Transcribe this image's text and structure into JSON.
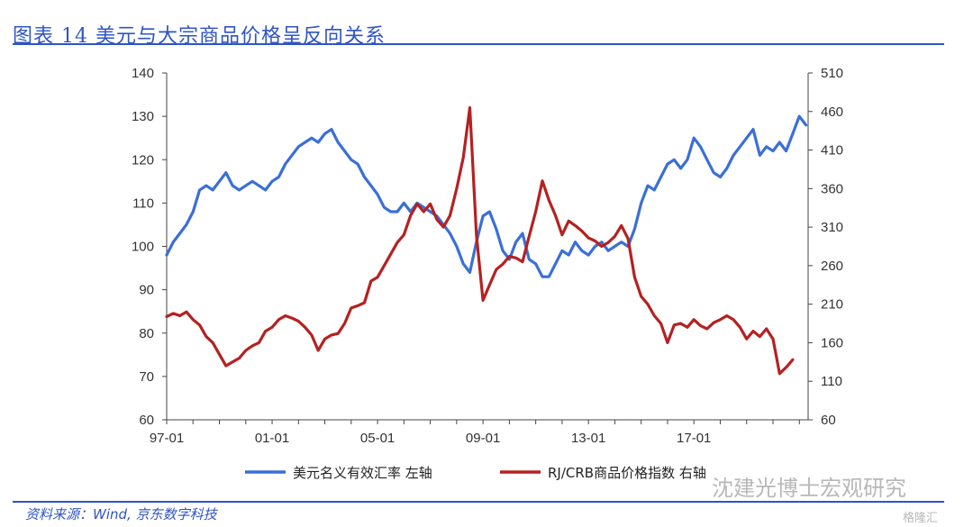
{
  "figure": {
    "title": "图表 14 美元与大宗商品价格呈反向关系",
    "source": "资料来源：Wind, 京东数字科技",
    "watermark": "沈建光博士宏观研究",
    "brand": "格隆汇"
  },
  "colors": {
    "usd": "#3a6fd8",
    "crb": "#b52121",
    "title": "#2f54c6"
  },
  "chart_data": {
    "type": "line",
    "title": "",
    "x_ticks": [
      "97-01",
      "01-01",
      "05-01",
      "09-01",
      "13-01",
      "17-01"
    ],
    "y_left": {
      "lim": [
        60,
        140
      ],
      "ticks": [
        60,
        70,
        80,
        90,
        100,
        110,
        120,
        130,
        140
      ]
    },
    "y_right": {
      "lim": [
        60,
        510
      ],
      "ticks": [
        60,
        110,
        160,
        210,
        260,
        310,
        360,
        410,
        460,
        510
      ]
    },
    "grid": false,
    "legend": "bottom",
    "series": [
      {
        "name": "美元名义有效汇率 左轴",
        "axis": "left",
        "points": [
          [
            "1997-01",
            98
          ],
          [
            "1997-04",
            101
          ],
          [
            "1997-07",
            103
          ],
          [
            "1997-10",
            105
          ],
          [
            "1998-01",
            108
          ],
          [
            "1998-04",
            113
          ],
          [
            "1998-07",
            114
          ],
          [
            "1998-10",
            113
          ],
          [
            "1999-01",
            115
          ],
          [
            "1999-04",
            117
          ],
          [
            "1999-07",
            114
          ],
          [
            "1999-10",
            113
          ],
          [
            "2000-01",
            114
          ],
          [
            "2000-04",
            115
          ],
          [
            "2000-07",
            114
          ],
          [
            "2000-10",
            113
          ],
          [
            "2001-01",
            115
          ],
          [
            "2001-04",
            116
          ],
          [
            "2001-07",
            119
          ],
          [
            "2001-10",
            121
          ],
          [
            "2002-01",
            123
          ],
          [
            "2002-04",
            124
          ],
          [
            "2002-07",
            125
          ],
          [
            "2002-10",
            124
          ],
          [
            "2003-01",
            126
          ],
          [
            "2003-04",
            127
          ],
          [
            "2003-07",
            124
          ],
          [
            "2003-10",
            122
          ],
          [
            "2004-01",
            120
          ],
          [
            "2004-04",
            119
          ],
          [
            "2004-07",
            116
          ],
          [
            "2004-10",
            114
          ],
          [
            "2005-01",
            112
          ],
          [
            "2005-04",
            109
          ],
          [
            "2005-07",
            108
          ],
          [
            "2005-10",
            108
          ],
          [
            "2006-01",
            110
          ],
          [
            "2006-04",
            108
          ],
          [
            "2006-07",
            110
          ],
          [
            "2006-10",
            109
          ],
          [
            "2007-01",
            108
          ],
          [
            "2007-04",
            107
          ],
          [
            "2007-07",
            105
          ],
          [
            "2007-10",
            103
          ],
          [
            "2008-01",
            100
          ],
          [
            "2008-04",
            96
          ],
          [
            "2008-07",
            94
          ],
          [
            "2008-10",
            101
          ],
          [
            "2009-01",
            107
          ],
          [
            "2009-04",
            108
          ],
          [
            "2009-07",
            104
          ],
          [
            "2009-10",
            99
          ],
          [
            "2010-01",
            97
          ],
          [
            "2010-04",
            101
          ],
          [
            "2010-07",
            103
          ],
          [
            "2010-10",
            97
          ],
          [
            "2011-01",
            96
          ],
          [
            "2011-04",
            93
          ],
          [
            "2011-07",
            93
          ],
          [
            "2011-10",
            96
          ],
          [
            "2012-01",
            99
          ],
          [
            "2012-04",
            98
          ],
          [
            "2012-07",
            101
          ],
          [
            "2012-10",
            99
          ],
          [
            "2013-01",
            98
          ],
          [
            "2013-04",
            100
          ],
          [
            "2013-07",
            101
          ],
          [
            "2013-10",
            99
          ],
          [
            "2014-01",
            100
          ],
          [
            "2014-04",
            101
          ],
          [
            "2014-07",
            100
          ],
          [
            "2014-10",
            104
          ],
          [
            "2015-01",
            110
          ],
          [
            "2015-04",
            114
          ],
          [
            "2015-07",
            113
          ],
          [
            "2015-10",
            116
          ],
          [
            "2016-01",
            119
          ],
          [
            "2016-04",
            120
          ],
          [
            "2016-07",
            118
          ],
          [
            "2016-10",
            120
          ],
          [
            "2017-01",
            125
          ],
          [
            "2017-04",
            123
          ],
          [
            "2017-07",
            120
          ],
          [
            "2017-10",
            117
          ],
          [
            "2018-01",
            116
          ],
          [
            "2018-04",
            118
          ],
          [
            "2018-07",
            121
          ],
          [
            "2018-10",
            123
          ],
          [
            "2019-01",
            125
          ],
          [
            "2019-04",
            127
          ],
          [
            "2019-07",
            121
          ],
          [
            "2019-10",
            123
          ],
          [
            "2020-01",
            122
          ],
          [
            "2020-04",
            124
          ],
          [
            "2020-07",
            122
          ],
          [
            "2020-10",
            126
          ],
          [
            "2021-01",
            130
          ],
          [
            "2021-04",
            128
          ]
        ]
      },
      {
        "name": "RJ/CRB商品价格指数 右轴",
        "axis": "right",
        "points": [
          [
            "1997-01",
            194
          ],
          [
            "1997-04",
            198
          ],
          [
            "1997-07",
            195
          ],
          [
            "1997-10",
            200
          ],
          [
            "1998-01",
            190
          ],
          [
            "1998-04",
            183
          ],
          [
            "1998-07",
            168
          ],
          [
            "1998-10",
            160
          ],
          [
            "1999-01",
            145
          ],
          [
            "1999-04",
            130
          ],
          [
            "1999-07",
            135
          ],
          [
            "1999-10",
            140
          ],
          [
            "2000-01",
            150
          ],
          [
            "2000-04",
            156
          ],
          [
            "2000-07",
            160
          ],
          [
            "2000-10",
            175
          ],
          [
            "2001-01",
            180
          ],
          [
            "2001-04",
            190
          ],
          [
            "2001-07",
            195
          ],
          [
            "2001-10",
            192
          ],
          [
            "2002-01",
            188
          ],
          [
            "2002-04",
            180
          ],
          [
            "2002-07",
            170
          ],
          [
            "2002-10",
            150
          ],
          [
            "2003-01",
            165
          ],
          [
            "2003-04",
            170
          ],
          [
            "2003-07",
            172
          ],
          [
            "2003-10",
            185
          ],
          [
            "2004-01",
            205
          ],
          [
            "2004-04",
            208
          ],
          [
            "2004-07",
            212
          ],
          [
            "2004-10",
            240
          ],
          [
            "2005-01",
            245
          ],
          [
            "2005-04",
            260
          ],
          [
            "2005-07",
            275
          ],
          [
            "2005-10",
            290
          ],
          [
            "2006-01",
            300
          ],
          [
            "2006-04",
            325
          ],
          [
            "2006-07",
            340
          ],
          [
            "2006-10",
            330
          ],
          [
            "2007-01",
            340
          ],
          [
            "2007-04",
            320
          ],
          [
            "2007-07",
            310
          ],
          [
            "2007-10",
            325
          ],
          [
            "2008-01",
            360
          ],
          [
            "2008-04",
            400
          ],
          [
            "2008-07",
            465
          ],
          [
            "2008-10",
            300
          ],
          [
            "2009-01",
            215
          ],
          [
            "2009-04",
            235
          ],
          [
            "2009-07",
            255
          ],
          [
            "2009-10",
            262
          ],
          [
            "2010-01",
            272
          ],
          [
            "2010-04",
            270
          ],
          [
            "2010-07",
            265
          ],
          [
            "2010-10",
            298
          ],
          [
            "2011-01",
            330
          ],
          [
            "2011-04",
            370
          ],
          [
            "2011-07",
            345
          ],
          [
            "2011-10",
            325
          ],
          [
            "2012-01",
            300
          ],
          [
            "2012-04",
            318
          ],
          [
            "2012-07",
            312
          ],
          [
            "2012-10",
            305
          ],
          [
            "2013-01",
            296
          ],
          [
            "2013-04",
            292
          ],
          [
            "2013-07",
            285
          ],
          [
            "2013-10",
            290
          ],
          [
            "2014-01",
            298
          ],
          [
            "2014-04",
            312
          ],
          [
            "2014-07",
            295
          ],
          [
            "2014-10",
            245
          ],
          [
            "2015-01",
            220
          ],
          [
            "2015-04",
            210
          ],
          [
            "2015-07",
            195
          ],
          [
            "2015-10",
            185
          ],
          [
            "2016-01",
            160
          ],
          [
            "2016-04",
            183
          ],
          [
            "2016-07",
            185
          ],
          [
            "2016-10",
            180
          ],
          [
            "2017-01",
            190
          ],
          [
            "2017-04",
            182
          ],
          [
            "2017-07",
            178
          ],
          [
            "2017-10",
            186
          ],
          [
            "2018-01",
            190
          ],
          [
            "2018-04",
            195
          ],
          [
            "2018-07",
            190
          ],
          [
            "2018-10",
            180
          ],
          [
            "2019-01",
            165
          ],
          [
            "2019-04",
            175
          ],
          [
            "2019-07",
            168
          ],
          [
            "2019-10",
            178
          ],
          [
            "2020-01",
            165
          ],
          [
            "2020-04",
            120
          ],
          [
            "2020-07",
            128
          ],
          [
            "2020-10",
            138
          ]
        ]
      }
    ]
  }
}
